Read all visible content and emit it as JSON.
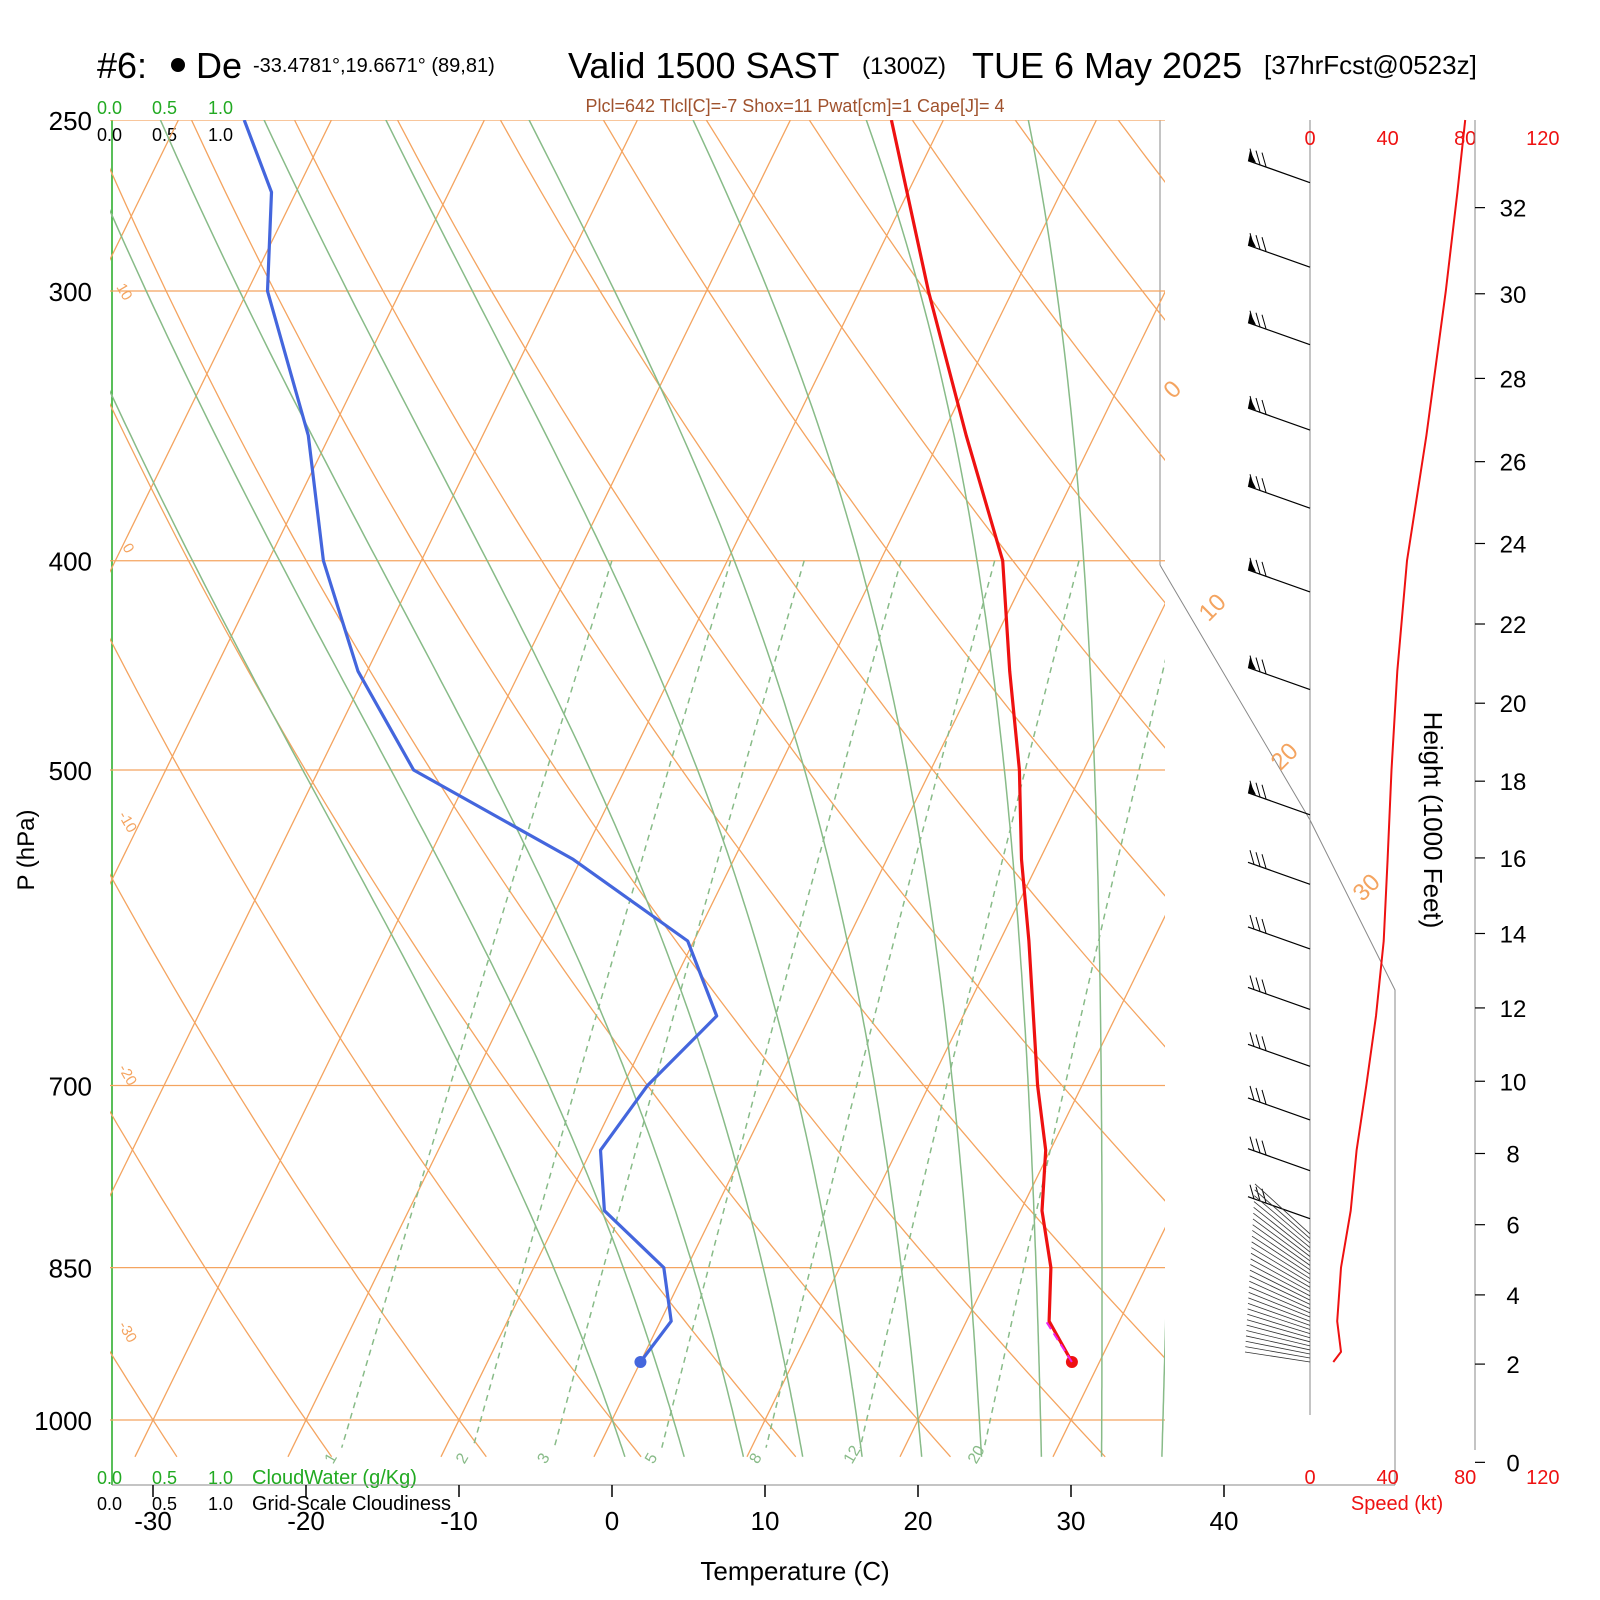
{
  "header": {
    "station_id": "#6:",
    "station_name": "De",
    "coords": "-33.4781°,19.6671° (89,81)",
    "valid": "Valid 1500 SAST",
    "utc": "(1300Z)",
    "date": "TUE 6 May 2025",
    "forecast": "[37hrFcst@0523z]",
    "indices": "Plcl=642 Tlcl[C]=-7 Shox=11 Pwat[cm]=1 Cape[J]= 4"
  },
  "cloud_scale": {
    "ticks": [
      "0.0",
      "0.5",
      "1.0"
    ],
    "cloudwater_label": "CloudWater (g/Kg)",
    "cloudiness_label": "Grid-Scale Cloudiness",
    "green": "#22aa22"
  },
  "chart_data": {
    "type": "line",
    "subtype": "skew-T log-P",
    "xlabel": "Temperature (C)",
    "ylabel": "P (hPa)",
    "xlim": [
      -33,
      36
    ],
    "ylim": [
      1030,
      250
    ],
    "x_ticks": [
      "-30",
      "-20",
      "-10",
      "0",
      "10",
      "20",
      "30",
      "40"
    ],
    "x_tick_values": [
      -30,
      -20,
      -10,
      0,
      10,
      20,
      30,
      40
    ],
    "p_ticks": [
      "250",
      "300",
      "400",
      "500",
      "700",
      "850",
      "1000"
    ],
    "p_tick_values": [
      250,
      300,
      400,
      500,
      700,
      850,
      1000
    ],
    "grid": true,
    "series": [
      {
        "role": "temperature",
        "color": "#ee1111",
        "points": [
          {
            "p": 940,
            "t": 28.2
          },
          {
            "p": 900,
            "t": 25.4
          },
          {
            "p": 850,
            "t": 23.8
          },
          {
            "p": 800,
            "t": 21.4
          },
          {
            "p": 750,
            "t": 19.7
          },
          {
            "p": 700,
            "t": 17.1
          },
          {
            "p": 650,
            "t": 14.6
          },
          {
            "p": 600,
            "t": 11.9
          },
          {
            "p": 550,
            "t": 8.8
          },
          {
            "p": 500,
            "t": 5.8
          },
          {
            "p": 450,
            "t": 2.0
          },
          {
            "p": 400,
            "t": -2.0
          },
          {
            "p": 350,
            "t": -8.4
          },
          {
            "p": 300,
            "t": -15.5
          },
          {
            "p": 250,
            "t": -23.4
          }
        ]
      },
      {
        "role": "dewpoint",
        "color": "#4466dd",
        "points": [
          {
            "p": 940,
            "t": 0.0
          },
          {
            "p": 900,
            "t": 0.7
          },
          {
            "p": 850,
            "t": -1.5
          },
          {
            "p": 800,
            "t": -7.2
          },
          {
            "p": 750,
            "t": -9.4
          },
          {
            "p": 700,
            "t": -8.4
          },
          {
            "p": 650,
            "t": -6.1
          },
          {
            "p": 600,
            "t": -10.4
          },
          {
            "p": 550,
            "t": -20.5
          },
          {
            "p": 500,
            "t": -33.8
          },
          {
            "p": 450,
            "t": -40.6
          },
          {
            "p": 400,
            "t": -46.4
          },
          {
            "p": 350,
            "t": -51.4
          },
          {
            "p": 300,
            "t": -58.7
          },
          {
            "p": 270,
            "t": -61.6
          },
          {
            "p": 250,
            "t": -65.7
          }
        ]
      },
      {
        "role": "surface parcel",
        "color": "#ee22ee",
        "points": [
          {
            "p": 940,
            "t": 28.2
          },
          {
            "p": 900,
            "t": 25.2
          }
        ]
      }
    ],
    "isotherm_labels": [
      "-30",
      "-20",
      "-10",
      "0",
      "10",
      "20",
      "30"
    ],
    "isotherm_label_values": [
      -30,
      -20,
      -10,
      0,
      10,
      20,
      30
    ],
    "mixing_ratio_labels": [
      "1",
      "2",
      "3",
      "5",
      "8",
      "12",
      "20"
    ],
    "mixing_ratio_values": [
      1,
      2,
      3,
      5,
      8,
      12,
      20
    ],
    "height_axis": {
      "label": "Height (1000 Feet)",
      "ticks": [
        "0",
        "2",
        "4",
        "6",
        "8",
        "10",
        "12",
        "14",
        "16",
        "18",
        "20",
        "22",
        "24",
        "26",
        "28",
        "30",
        "32"
      ],
      "values": [
        0,
        2,
        4,
        6,
        8,
        10,
        12,
        14,
        16,
        18,
        20,
        22,
        24,
        26,
        28,
        30,
        32
      ]
    },
    "speed_axis": {
      "label": "Speed (kt)",
      "ticks": [
        "0",
        "40",
        "80",
        "120"
      ],
      "values": [
        0,
        40,
        80,
        120
      ],
      "profile": [
        {
          "p": 940,
          "kt": 12
        },
        {
          "p": 930,
          "kt": 16
        },
        {
          "p": 900,
          "kt": 14
        },
        {
          "p": 850,
          "kt": 16
        },
        {
          "p": 800,
          "kt": 21
        },
        {
          "p": 750,
          "kt": 24
        },
        {
          "p": 700,
          "kt": 29
        },
        {
          "p": 650,
          "kt": 34
        },
        {
          "p": 600,
          "kt": 38
        },
        {
          "p": 550,
          "kt": 40
        },
        {
          "p": 500,
          "kt": 42
        },
        {
          "p": 450,
          "kt": 45
        },
        {
          "p": 400,
          "kt": 50
        },
        {
          "p": 350,
          "kt": 60
        },
        {
          "p": 300,
          "kt": 70
        },
        {
          "p": 270,
          "kt": 76
        },
        {
          "p": 250,
          "kt": 80
        }
      ]
    },
    "colors": {
      "isobar": "#f4a460",
      "dry_adiabat": "#f4a460",
      "moist_adiabat": "#88bb88",
      "mixing_ratio": "#88bb88",
      "title": "#000000",
      "indices": "#a0522d",
      "speed": "#ee1111"
    }
  }
}
